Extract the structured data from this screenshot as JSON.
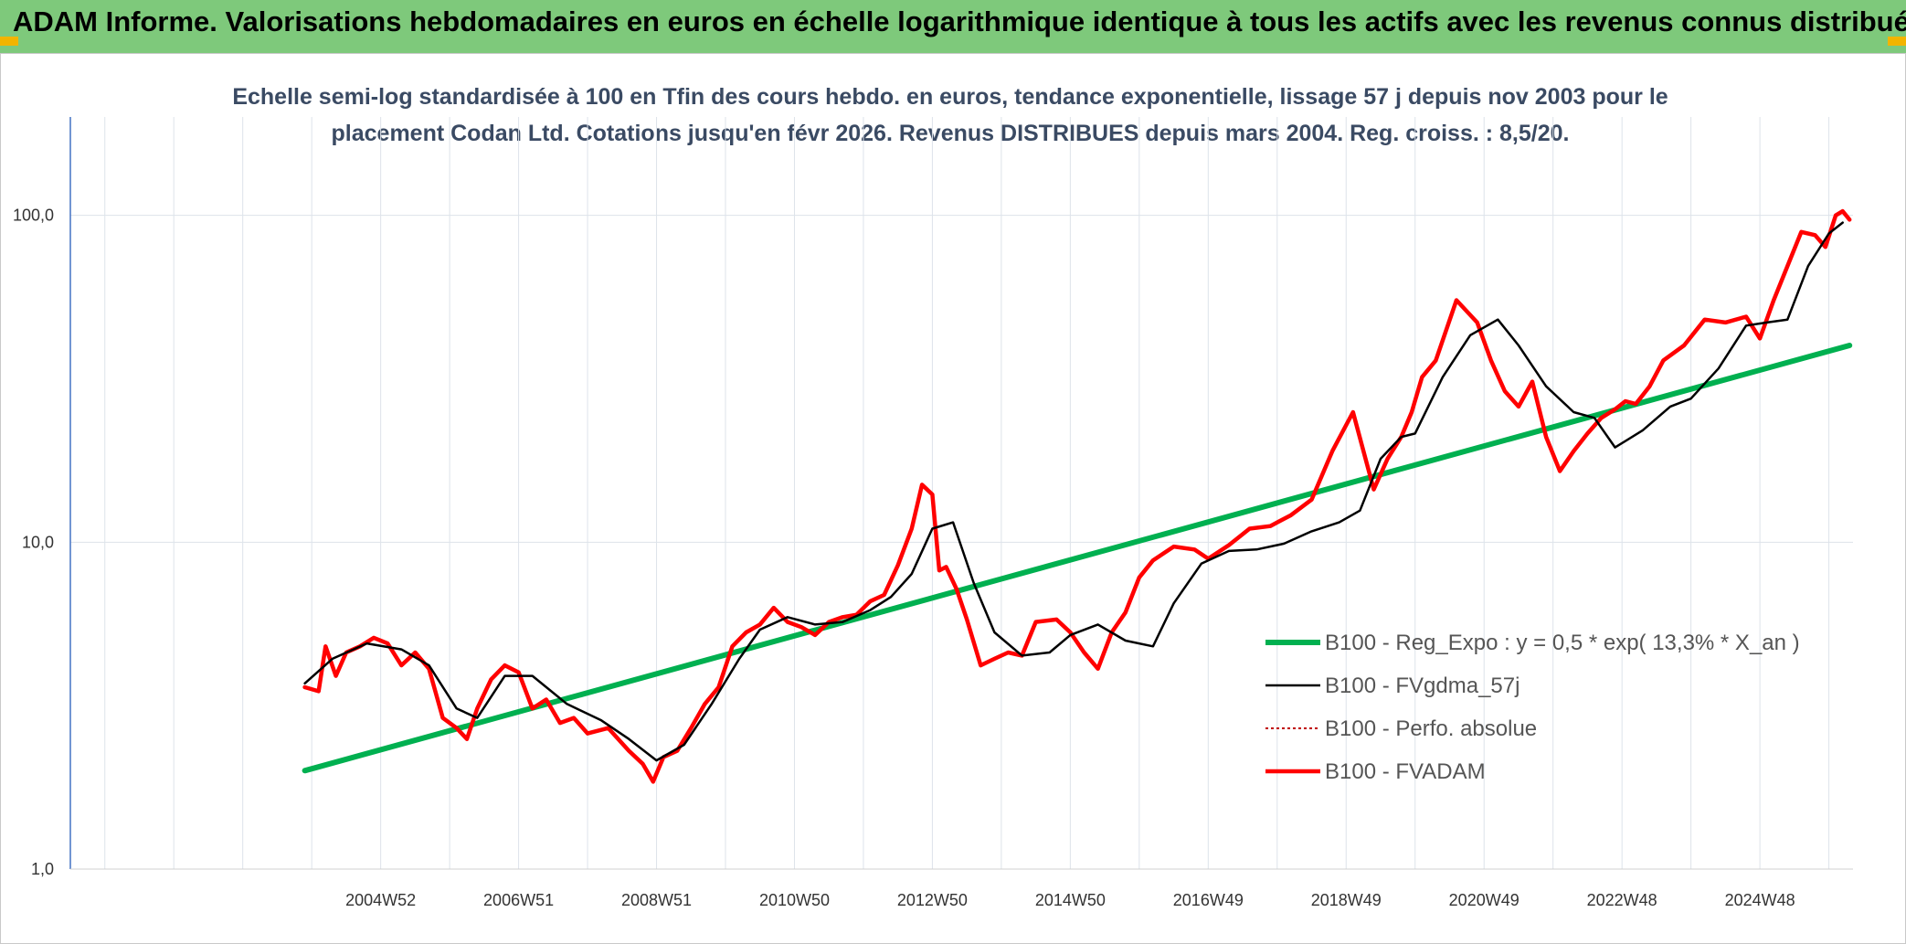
{
  "header": {
    "title": "ADAM Informe. Valorisations hebdomadaires en euros en échelle logarithmique identique à tous les actifs avec les revenus connus distribués"
  },
  "chart_data": {
    "type": "line",
    "title": "Echelle semi-log standardisée à 100 en Tfin des cours hebdo. en euros, tendance exponentielle, lissage 57 j depuis nov 2003 pour le placement Codan Ltd. Cotations jusqu'en févr 2026. Revenus DISTRIBUES depuis mars 2004. Reg. croiss. : 8,5/20.",
    "y_scale": "log",
    "ylim": [
      1,
      200
    ],
    "xlim": [
      2000.5,
      2026.35
    ],
    "y_ticks": [
      {
        "value": 1,
        "label": "1,0"
      },
      {
        "value": 10,
        "label": "10,0"
      },
      {
        "value": 100,
        "label": "100,0"
      }
    ],
    "x_ticks": [
      {
        "value": 2005.0,
        "label": "2004W52"
      },
      {
        "value": 2007.0,
        "label": "2006W51"
      },
      {
        "value": 2009.0,
        "label": "2008W51"
      },
      {
        "value": 2011.0,
        "label": "2010W50"
      },
      {
        "value": 2013.0,
        "label": "2012W50"
      },
      {
        "value": 2015.0,
        "label": "2014W50"
      },
      {
        "value": 2017.0,
        "label": "2016W49"
      },
      {
        "value": 2019.0,
        "label": "2018W49"
      },
      {
        "value": 2021.0,
        "label": "2020W49"
      },
      {
        "value": 2023.0,
        "label": "2022W48"
      },
      {
        "value": 2025.0,
        "label": "2024W48"
      }
    ],
    "grid": true,
    "legend_position": "bottom-right",
    "series": [
      {
        "name": "B100 - Reg_Expo : y = 0,5 * exp( 13,3% *  X_an )",
        "color": "#00b050",
        "style": "solid-thick",
        "x": [
          2003.9,
          2026.3
        ],
        "y": [
          2.0,
          40.0
        ]
      },
      {
        "name": "B100 - FVgdma_57j",
        "color": "#000000",
        "style": "solid-thin",
        "x": [
          2003.9,
          2004.3,
          2004.8,
          2005.3,
          2005.7,
          2006.1,
          2006.4,
          2006.8,
          2007.2,
          2007.7,
          2008.2,
          2008.6,
          2009.0,
          2009.4,
          2009.8,
          2010.2,
          2010.5,
          2010.9,
          2011.3,
          2011.7,
          2012.1,
          2012.4,
          2012.7,
          2013.0,
          2013.3,
          2013.6,
          2013.9,
          2014.3,
          2014.7,
          2015.0,
          2015.4,
          2015.8,
          2016.2,
          2016.5,
          2016.9,
          2017.3,
          2017.7,
          2018.1,
          2018.5,
          2018.9,
          2019.2,
          2019.5,
          2019.8,
          2020.0,
          2020.4,
          2020.8,
          2021.2,
          2021.5,
          2021.9,
          2022.3,
          2022.6,
          2022.9,
          2023.3,
          2023.7,
          2024.0,
          2024.4,
          2024.8,
          2025.1,
          2025.4,
          2025.7,
          2026.0,
          2026.2
        ],
        "y": [
          3.7,
          4.4,
          4.9,
          4.7,
          4.2,
          3.1,
          2.9,
          3.9,
          3.9,
          3.2,
          2.85,
          2.5,
          2.15,
          2.4,
          3.2,
          4.4,
          5.4,
          5.9,
          5.6,
          5.7,
          6.2,
          6.8,
          8.0,
          11.0,
          11.5,
          7.5,
          5.3,
          4.5,
          4.6,
          5.2,
          5.6,
          5.0,
          4.8,
          6.5,
          8.6,
          9.4,
          9.5,
          9.9,
          10.8,
          11.5,
          12.5,
          18.0,
          21.0,
          21.5,
          32.0,
          43.0,
          48.0,
          40.0,
          30.0,
          25.0,
          24.0,
          19.5,
          22.0,
          26.0,
          27.5,
          34.0,
          46.0,
          47.0,
          48.0,
          70.0,
          88.0,
          95.0
        ]
      },
      {
        "name": "B100 - Perfo. absolue",
        "color": "#c00000",
        "style": "dotted",
        "x": [],
        "y": []
      },
      {
        "name": "B100 - FVADAM",
        "color": "#ff0000",
        "style": "solid-thick",
        "x": [
          2003.9,
          2004.1,
          2004.2,
          2004.35,
          2004.5,
          2004.7,
          2004.9,
          2005.1,
          2005.3,
          2005.5,
          2005.7,
          2005.9,
          2006.1,
          2006.25,
          2006.4,
          2006.6,
          2006.8,
          2007.0,
          2007.2,
          2007.4,
          2007.6,
          2007.8,
          2008.0,
          2008.3,
          2008.6,
          2008.8,
          2008.95,
          2009.1,
          2009.3,
          2009.5,
          2009.7,
          2009.9,
          2010.1,
          2010.3,
          2010.5,
          2010.7,
          2010.9,
          2011.1,
          2011.3,
          2011.5,
          2011.7,
          2011.9,
          2012.1,
          2012.3,
          2012.5,
          2012.7,
          2012.85,
          2013.0,
          2013.1,
          2013.2,
          2013.35,
          2013.5,
          2013.7,
          2013.9,
          2014.1,
          2014.3,
          2014.5,
          2014.8,
          2015.0,
          2015.2,
          2015.4,
          2015.6,
          2015.8,
          2016.0,
          2016.2,
          2016.5,
          2016.8,
          2017.0,
          2017.3,
          2017.6,
          2017.9,
          2018.2,
          2018.5,
          2018.8,
          2019.1,
          2019.4,
          2019.6,
          2019.8,
          2019.95,
          2020.1,
          2020.3,
          2020.6,
          2020.9,
          2021.1,
          2021.3,
          2021.5,
          2021.7,
          2021.9,
          2022.1,
          2022.3,
          2022.5,
          2022.7,
          2022.9,
          2023.05,
          2023.2,
          2023.4,
          2023.6,
          2023.9,
          2024.2,
          2024.5,
          2024.8,
          2025.0,
          2025.2,
          2025.4,
          2025.6,
          2025.8,
          2025.95,
          2026.1,
          2026.2,
          2026.3
        ],
        "y": [
          3.6,
          3.5,
          4.8,
          3.9,
          4.6,
          4.8,
          5.1,
          4.9,
          4.2,
          4.6,
          4.1,
          2.9,
          2.7,
          2.5,
          3.1,
          3.8,
          4.2,
          4.0,
          3.1,
          3.3,
          2.8,
          2.9,
          2.6,
          2.7,
          2.3,
          2.1,
          1.85,
          2.2,
          2.3,
          2.7,
          3.2,
          3.6,
          4.8,
          5.3,
          5.6,
          6.3,
          5.7,
          5.5,
          5.2,
          5.7,
          5.9,
          6.0,
          6.6,
          6.9,
          8.5,
          11.0,
          15.0,
          14.0,
          8.2,
          8.4,
          7.2,
          5.8,
          4.2,
          4.4,
          4.6,
          4.5,
          5.7,
          5.8,
          5.3,
          4.6,
          4.1,
          5.3,
          6.1,
          7.8,
          8.8,
          9.7,
          9.5,
          8.9,
          9.8,
          11.0,
          11.2,
          12.1,
          13.5,
          19.0,
          25.0,
          14.5,
          18.0,
          21.0,
          25.0,
          32.0,
          36.0,
          55.0,
          47.0,
          36.0,
          29.0,
          26.0,
          31.0,
          21.0,
          16.5,
          19.0,
          21.5,
          24.0,
          25.5,
          27.0,
          26.5,
          30.0,
          36.0,
          40.0,
          48.0,
          47.0,
          49.0,
          42.0,
          55.0,
          70.0,
          89.0,
          87.0,
          80.0,
          100.0,
          103.0,
          97.0
        ]
      }
    ]
  }
}
